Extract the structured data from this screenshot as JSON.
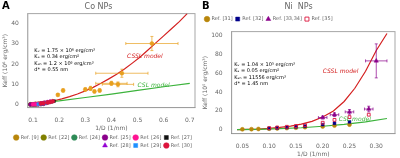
{
  "chart_data": [
    {
      "type": "scatter",
      "title": "Co NPs",
      "xlabel": "1/D (1/nm)",
      "ylabel": "Keff (10⁶ erg/cm³)",
      "xlim": [
        0.08,
        0.72
      ],
      "ylim": [
        -1.5,
        45
      ],
      "xticks": [
        0.1,
        0.2,
        0.3,
        0.4,
        0.5,
        0.6,
        0.7
      ],
      "yticks": [
        0,
        10,
        20,
        30,
        40
      ],
      "grid": false,
      "legend": "lower right",
      "annotations": [
        {
          "text": "A"
        },
        {
          "text": "CSSL model",
          "x": 0.46,
          "y": 23,
          "color": "#d42020"
        },
        {
          "text": "CSL model",
          "x": 0.5,
          "y": 8.5,
          "color": "#3cb33c"
        },
        {
          "text": "Kᵥ = 1.75 × 10⁶ erg/cm³\nKₛ = 0.34 erg/cm²\nKₛₕ = 1.2 × 10⁶ erg/cm³\nd* = 0.55 nm",
          "x": 0.105,
          "y": 28
        }
      ],
      "series": [
        {
          "type": "line",
          "color": "#d42020",
          "x": [
            0.09,
            0.12,
            0.15,
            0.18,
            0.21,
            0.24,
            0.27,
            0.3,
            0.33,
            0.36,
            0.39,
            0.42,
            0.45,
            0.48,
            0.51,
            0.54,
            0.57,
            0.6,
            0.63,
            0.66,
            0.69
          ],
          "values": [
            0.3,
            0.6,
            1.1,
            1.8,
            2.8,
            3.9,
            5.2,
            6.8,
            8.5,
            10.5,
            12.7,
            15.0,
            17.6,
            20.5,
            23.5,
            27.0,
            30.5,
            34.0,
            37.5,
            41.0,
            45.0
          ]
        },
        {
          "type": "line",
          "color": "#3cb33c",
          "x": [
            0.09,
            0.2,
            0.3,
            0.4,
            0.5,
            0.6,
            0.7
          ],
          "values": [
            0.3,
            1.8,
            3.5,
            5.2,
            7.0,
            8.8,
            10.5
          ]
        },
        {
          "type": "scatter",
          "name": "Ref. [9]",
          "color": "#b8860b",
          "marker": "circle",
          "x": [
            0.09,
            0.1,
            0.105,
            0.11,
            0.115,
            0.12,
            0.125,
            0.13,
            0.135,
            0.14,
            0.145,
            0.155
          ],
          "values": [
            0.1,
            0.15,
            0.2,
            0.25,
            0.3,
            0.35,
            0.45,
            0.5,
            0.6,
            0.7,
            0.8,
            1.0
          ]
        },
        {
          "type": "scatter",
          "name": "Ref. [22]",
          "color": "#808000",
          "marker": "circle",
          "x": [
            0.09,
            0.1,
            0.105,
            0.11
          ],
          "values": [
            0.05,
            0.1,
            0.15,
            0.2
          ]
        },
        {
          "type": "scatter",
          "name": "Ref. [24]",
          "color": "#2e8b57",
          "marker": "circle",
          "x": [
            0.1,
            0.11,
            0.115,
            0.12,
            0.13
          ],
          "values": [
            0.05,
            0.1,
            0.15,
            0.2,
            0.3
          ]
        },
        {
          "type": "scatter",
          "name": "Ref. [25]",
          "color": "#8b008b",
          "marker": "circle",
          "x": [
            0.09,
            0.1,
            0.11,
            0.12,
            0.13,
            0.14
          ],
          "values": [
            0.05,
            0.1,
            0.15,
            0.2,
            0.3,
            0.4
          ]
        },
        {
          "type": "scatter",
          "name": "Ref. [26]",
          "color": "#ff1493",
          "marker": "circle",
          "x": [
            0.1,
            0.11,
            0.12,
            0.13,
            0.14,
            0.15
          ],
          "values": [
            0.1,
            0.2,
            0.3,
            0.5,
            0.6,
            0.8
          ]
        },
        {
          "type": "scatter",
          "name": "Ref. [27]",
          "color": "#111111",
          "marker": "square",
          "x": [
            0.13,
            0.14,
            0.15,
            0.16,
            0.17,
            0.18
          ],
          "values": [
            0.4,
            0.6,
            0.9,
            1.1,
            1.4,
            1.7
          ]
        },
        {
          "type": "scatter",
          "name": "Ref. [28]",
          "color": "#9400d3",
          "marker": "triangle",
          "x": [
            0.135,
            0.145,
            0.155,
            0.165
          ],
          "values": [
            0.5,
            0.8,
            1.1,
            1.4
          ]
        },
        {
          "type": "scatter",
          "name": "Ref. [29]",
          "color": "#1e90ff",
          "marker": "square",
          "x": [
            0.12,
            0.13,
            0.14,
            0.15
          ],
          "values": [
            0.2,
            0.35,
            0.5,
            0.7
          ]
        },
        {
          "type": "scatter",
          "name": "Ref. [30]",
          "color": "#dc143c",
          "marker": "circle",
          "x": [
            0.13,
            0.14,
            0.155,
            0.165,
            0.175
          ],
          "values": [
            0.5,
            0.7,
            1.0,
            1.3,
            1.6
          ]
        },
        {
          "type": "scatter",
          "color": "#e8a020",
          "marker": "circle",
          "x": [
            0.195,
            0.215,
            0.3,
            0.32,
            0.335,
            0.355,
            0.4,
            0.425,
            0.44,
            0.555
          ],
          "values": [
            4.8,
            7.0,
            7.5,
            8.0,
            6.5,
            7.0,
            10.5,
            10.0,
            15.5,
            30.2
          ],
          "xerr": [
            0.0,
            0.0,
            0.0,
            0.0,
            0.0,
            0.0,
            0.06,
            0.06,
            0.1,
            0.1
          ],
          "yerr": [
            0.6,
            0.8,
            0.8,
            1.0,
            0.7,
            0.8,
            1.0,
            1.2,
            2.0,
            3.5
          ]
        }
      ]
    },
    {
      "type": "scatter",
      "title": "Ni  NPs",
      "xlabel": "1/D (1/nm)",
      "ylabel": "Keff (10⁵ erg/cm³)",
      "xlim": [
        0.03,
        0.335
      ],
      "ylim": [
        -4,
        104
      ],
      "xticks": [
        0.05,
        {
          "value": 0.1,
          "label": "0.10"
        },
        0.15,
        {
          "value": 0.2,
          "label": "0.20"
        },
        0.25,
        {
          "value": 0.3,
          "label": "0.30"
        }
      ],
      "yticks": [
        0,
        20,
        40,
        60,
        80,
        100
      ],
      "grid": false,
      "legend": "upper left",
      "annotations": [
        {
          "text": "B"
        },
        {
          "text": "CSSL model",
          "x": 0.2,
          "y": 60,
          "color": "#d42020"
        },
        {
          "text": "CSL model",
          "x": 0.23,
          "y": 9,
          "color": "#3cb33c"
        },
        {
          "text": "Kᵥ = 1.04 × 10⁵ erg/cm³\nKₛ = 0.05 erg/cm²\nKₛₕ = 11556 erg/cm³\nd* = 1.45 nm",
          "x": 0.035,
          "y": 72
        }
      ],
      "series": [
        {
          "type": "line",
          "color": "#d42020",
          "x": [
            0.04,
            0.06,
            0.08,
            0.1,
            0.12,
            0.14,
            0.16,
            0.18,
            0.2,
            0.22,
            0.24,
            0.26,
            0.28,
            0.3,
            0.32
          ],
          "values": [
            0.15,
            0.4,
            0.8,
            1.5,
            2.5,
            4.0,
            6.0,
            9.0,
            13.5,
            20.0,
            30.0,
            44.0,
            62.0,
            84.0,
            102.0
          ]
        },
        {
          "type": "line",
          "color": "#3cb33c",
          "x": [
            0.04,
            0.08,
            0.12,
            0.16,
            0.2,
            0.24,
            0.28,
            0.32
          ],
          "values": [
            0.15,
            0.5,
            1.2,
            2.2,
            3.8,
            5.8,
            8.5,
            12.0
          ]
        },
        {
          "type": "scatter",
          "name": "Ref. [31]",
          "color": "#b8860b",
          "marker": "circle",
          "x": [
            0.05,
            0.067,
            0.08,
            0.1,
            0.115,
            0.133,
            0.15,
            0.167,
            0.2,
            0.222,
            0.25
          ],
          "values": [
            0.5,
            0.7,
            0.9,
            1.2,
            1.5,
            1.8,
            2.2,
            2.8,
            3.5,
            4.5,
            5.5
          ]
        },
        {
          "type": "scatter",
          "name": "Ref. [32]",
          "color": "#00008b",
          "marker": "square",
          "x": [
            0.1,
            0.115,
            0.133,
            0.15,
            0.167,
            0.2,
            0.222,
            0.25
          ],
          "values": [
            1.5,
            2.0,
            2.5,
            3.2,
            4.0,
            5.5,
            7.0,
            8.5
          ]
        },
        {
          "type": "scatter",
          "name": "Ref. [33,34]",
          "color": "#8b008b",
          "marker": "triangle",
          "x": [
            0.2,
            0.222,
            0.25,
            0.286,
            0.3
          ],
          "values": [
            13.0,
            16.0,
            19.0,
            22.0,
            73.0
          ],
          "xerr": [
            0.008,
            0.008,
            0.008,
            0.008,
            0.02
          ],
          "yerr": [
            1.5,
            2.0,
            2.5,
            3.0,
            18.0
          ]
        },
        {
          "type": "scatter",
          "name": "Ref. [35]",
          "color": "#dc143c",
          "marker": "open-square",
          "x": [
            0.1,
            0.115,
            0.133,
            0.15,
            0.167,
            0.2,
            0.222,
            0.25,
            0.286
          ],
          "values": [
            1.8,
            2.5,
            3.2,
            4.0,
            5.0,
            7.5,
            10.5,
            13.5,
            16.0
          ]
        }
      ]
    }
  ]
}
